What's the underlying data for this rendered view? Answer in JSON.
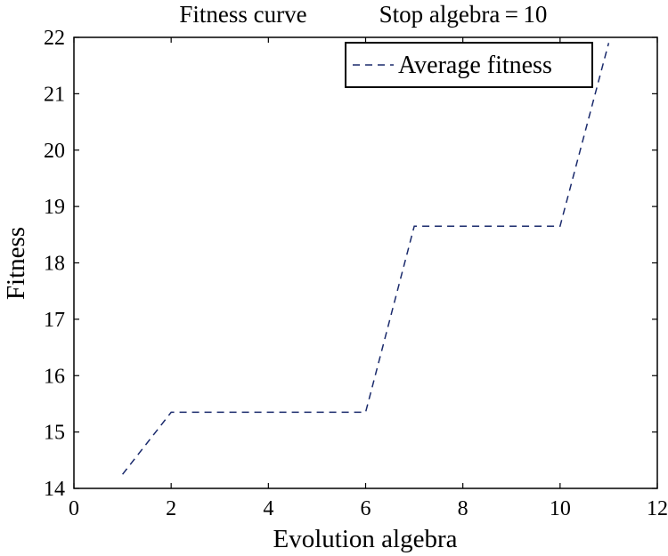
{
  "chart_data": {
    "type": "line",
    "title_left": "Fitness curve",
    "title_right": "Stop algebra = 10",
    "xlabel": "Evolution algebra",
    "ylabel": "Fitness",
    "xlim": [
      0,
      12
    ],
    "ylim": [
      14,
      22
    ],
    "x_ticks": [
      0,
      2,
      4,
      6,
      8,
      10,
      12
    ],
    "y_ticks": [
      14,
      15,
      16,
      17,
      18,
      19,
      20,
      21,
      22
    ],
    "grid": false,
    "legend_position": "top-right",
    "series": [
      {
        "name": "Average fitness",
        "color": "#1a2a6c",
        "style": "dashed",
        "x": [
          1,
          2,
          3,
          4,
          5,
          6,
          7,
          8,
          9,
          10,
          11
        ],
        "y": [
          14.25,
          15.35,
          15.35,
          15.35,
          15.35,
          15.35,
          18.65,
          18.65,
          18.65,
          18.65,
          21.9
        ]
      }
    ]
  }
}
